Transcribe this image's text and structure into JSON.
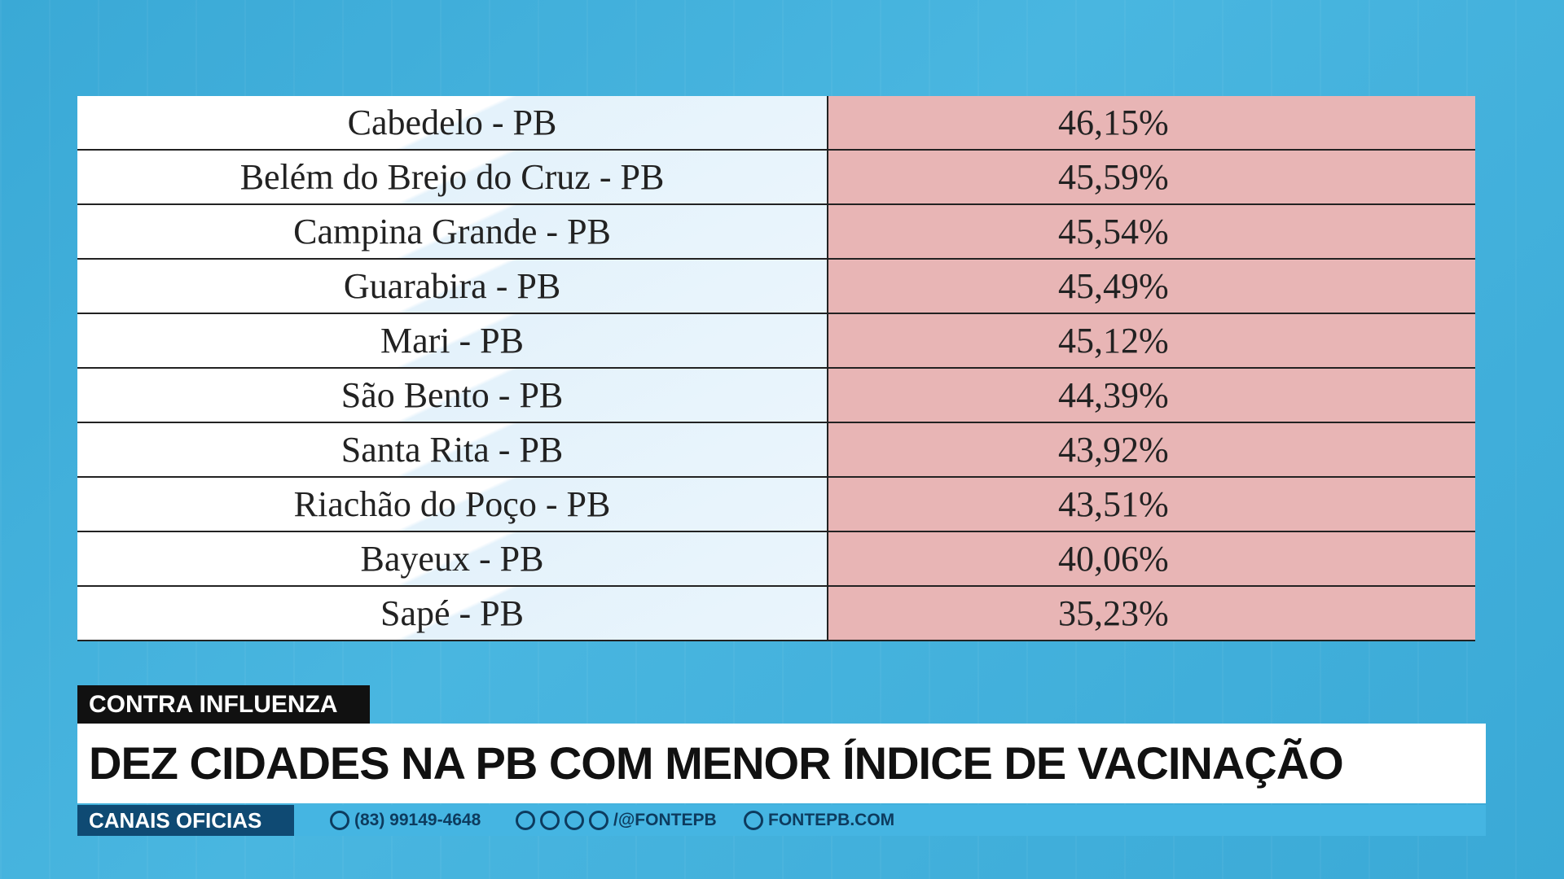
{
  "table": {
    "rows": [
      [
        "Cabedelo - PB",
        "46,15%"
      ],
      [
        "Belém do Brejo do Cruz - PB",
        "45,59%"
      ],
      [
        "Campina Grande - PB",
        "45,54%"
      ],
      [
        "Guarabira - PB",
        "45,49%"
      ],
      [
        "Mari - PB",
        "45,12%"
      ],
      [
        "São Bento - PB",
        "44,39%"
      ],
      [
        "Santa Rita - PB",
        "43,92%"
      ],
      [
        "Riachão do Poço - PB",
        "43,51%"
      ],
      [
        "Bayeux - PB",
        "40,06%"
      ],
      [
        "Sapé - PB",
        "35,23%"
      ]
    ]
  },
  "tag": "CONTRA INFLUENZA",
  "headline": "DEZ CIDADES NA PB COM MENOR ÍNDICE DE VACINAÇÃO",
  "footer": {
    "label": "CANAIS OFICIAS",
    "phone": "(83) 99149-4648",
    "social": "/@FONTEPB",
    "site": "FONTEPB.COM"
  }
}
